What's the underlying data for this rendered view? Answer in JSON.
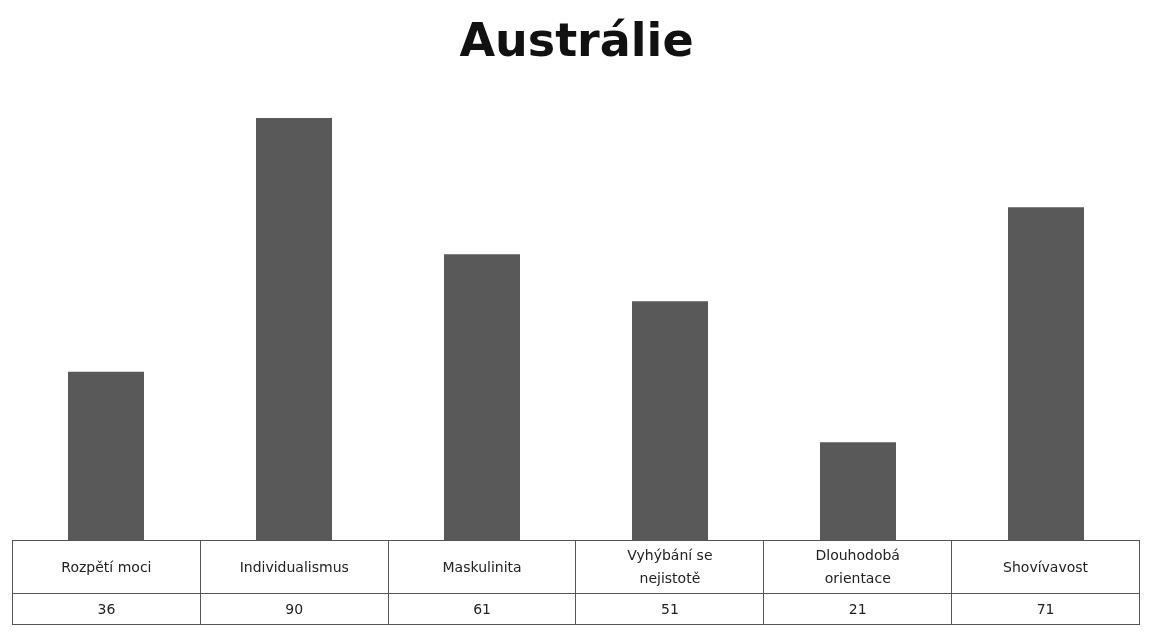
{
  "chart_data": {
    "type": "bar",
    "title": "Austrálie",
    "categories": [
      "Rozpětí moci",
      "Individualismus",
      "Maskulinita",
      "Vyhýbání se nejistotě",
      "Dlouhodobá orientace",
      "Shovívavost"
    ],
    "values": [
      36,
      90,
      61,
      51,
      21,
      71
    ],
    "color": "#595959",
    "data_labels": true
  }
}
